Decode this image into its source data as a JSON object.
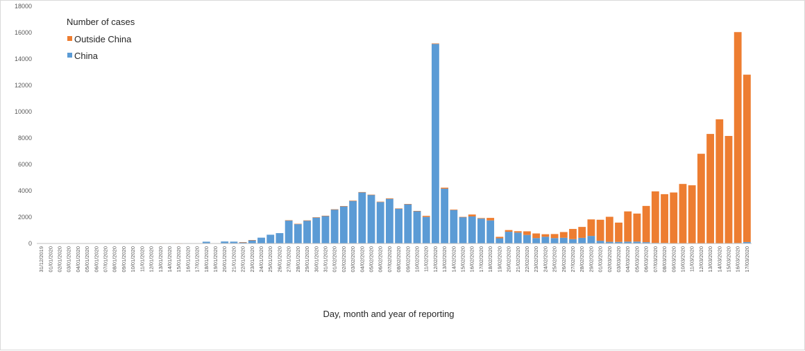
{
  "chart_data": {
    "type": "bar",
    "stacked": true,
    "title": "",
    "xlabel": "Day, month and year of reporting",
    "ylabel": "",
    "ylim": [
      0,
      18000
    ],
    "yticks": [
      0,
      2000,
      4000,
      6000,
      8000,
      10000,
      12000,
      14000,
      16000,
      18000
    ],
    "grid": false,
    "legend": {
      "title": "Number of cases",
      "position": "top-left"
    },
    "colors": {
      "Outside China": "#ED7D31",
      "China": "#5B9BD5"
    },
    "categories": [
      "31/12/2019",
      "01/01/2020",
      "02/01/2020",
      "03/01/2020",
      "04/01/2020",
      "05/01/2020",
      "06/01/2020",
      "07/01/2020",
      "08/01/2020",
      "09/01/2020",
      "10/01/2020",
      "11/01/2020",
      "12/01/2020",
      "13/01/2020",
      "14/01/2020",
      "15/01/2020",
      "16/01/2020",
      "17/01/2020",
      "18/01/2020",
      "19/01/2020",
      "20/01/2020",
      "21/01/2020",
      "22/01/2020",
      "23/01/2020",
      "24/01/2020",
      "25/01/2020",
      "26/01/2020",
      "27/01/2020",
      "28/01/2020",
      "29/01/2020",
      "30/01/2020",
      "31/01/2020",
      "01/02/2020",
      "02/02/2020",
      "03/02/2020",
      "04/02/2020",
      "05/02/2020",
      "06/02/2020",
      "07/02/2020",
      "08/02/2020",
      "09/02/2020",
      "10/02/2020",
      "11/02/2020",
      "12/02/2020",
      "13/02/2020",
      "14/02/2020",
      "15/02/2020",
      "16/02/2020",
      "17/02/2020",
      "18/02/2020",
      "19/02/2020",
      "20/02/2020",
      "21/02/2020",
      "22/02/2020",
      "23/02/2020",
      "24/02/2020",
      "25/02/2020",
      "26/02/2020",
      "27/02/2020",
      "28/02/2020",
      "29/02/2020",
      "01/03/2020",
      "02/03/2020",
      "03/03/2020",
      "04/03/2020",
      "05/03/2020",
      "06/03/2020",
      "07/03/2020",
      "08/03/2020",
      "09/03/2020",
      "10/03/2020",
      "11/03/2020",
      "12/03/2020",
      "13/03/2020",
      "14/03/2020",
      "15/03/2020",
      "16/03/2020",
      "17/03/2020"
    ],
    "category_labels": [
      "31/12/2019",
      "01/01/2020",
      "02/01/2020",
      "03/01/2020",
      "04/01/2020",
      "05/01/2020",
      "06/01/2020",
      "07/01/2020",
      "08/01/2020",
      "09/01/2020",
      "10/01/2020",
      "11/01/2020",
      "12/01/2020",
      "13/01/2020",
      "14/01/2020",
      "15/01/2020",
      "16/01/2020",
      "17/01/2020",
      "18/01/2020",
      "19/01/2020",
      "20/01/2020",
      "21/01/2020",
      "22/01/2020",
      "23/01/2020",
      "24/01/2020",
      "25/01/2020",
      "26/01/2020",
      "27/01/2020",
      "28/01/2020",
      "29/01/2020",
      "30/01/2020",
      "31/01/2020",
      "01/02/2020",
      "02/02/2020",
      "03/02/2020",
      "04/02/2020",
      "05/02/2020",
      "06/02/2020",
      "07/02/2020",
      "08/02/2020",
      "09/02/2020",
      "10/02/2020",
      "11/02/2020",
      "12/02/2020",
      "13/02/2020",
      "14/02/2020",
      "15/02/2020",
      "16/02/2020",
      "17/02/2020",
      "18/02/2020",
      "19/02/2020",
      "20/02/2020",
      "21/02/2020",
      "22/02/2020",
      "23/02/2020",
      "24/02/2020",
      "25/02/2020",
      "26/02/2020",
      "27/02/2020",
      "28/02/2020",
      "29/02/2020",
      "01/03/2020",
      "02/03/2020",
      "03/03/2020",
      "04/03/2020",
      "05/03/2020",
      "06/03/2020",
      "07/03/2020",
      "08/03/2020",
      "09/03/2020",
      "10/03/2020",
      "11/03/2020",
      "12/03/2020",
      "13/03/2020",
      "14/03/2020",
      "15/03/2020",
      "16/03/2020",
      "17/03/2020"
    ],
    "series": [
      {
        "name": "China",
        "values": [
          27,
          0,
          0,
          17,
          0,
          15,
          0,
          0,
          0,
          0,
          0,
          0,
          0,
          0,
          0,
          0,
          4,
          17,
          136,
          19,
          151,
          140,
          97,
          259,
          441,
          665,
          787,
          1753,
          1466,
          1740,
          1980,
          2102,
          2590,
          2829,
          3235,
          3887,
          3694,
          3143,
          3385,
          2652,
          2973,
          2467,
          2015,
          15141,
          4156,
          2538,
          2007,
          2052,
          1890,
          1750,
          394,
          891,
          826,
          648,
          409,
          508,
          406,
          433,
          327,
          427,
          573,
          202,
          125,
          119,
          139,
          143,
          99,
          44,
          40,
          19,
          24,
          15,
          8,
          11,
          21,
          13,
          39,
          109
        ],
        "outside_china": [
          0,
          0,
          0,
          0,
          0,
          0,
          0,
          0,
          0,
          0,
          0,
          0,
          0,
          2,
          0,
          1,
          0,
          2,
          0,
          0,
          0,
          0,
          6,
          3,
          0,
          0,
          0,
          10,
          30,
          12,
          6,
          6,
          1,
          9,
          17,
          14,
          8,
          32,
          44,
          8,
          26,
          7,
          83,
          40,
          79,
          37,
          11,
          147,
          40,
          191,
          112,
          127,
          105,
          275,
          353,
          195,
          311,
          435,
          776,
          830,
          1254,
          1599,
          1901,
          1465,
          2295,
          2127,
          2750,
          3911,
          3702,
          3850,
          4493,
          4401,
          6800,
          8300,
          9400,
          8146,
          16000,
          12700
        ]
      },
      {
        "name": "Outside China",
        "values": [
          0,
          0,
          0,
          0,
          0,
          0,
          0,
          0,
          0,
          0,
          0,
          0,
          0,
          2,
          0,
          1,
          0,
          2,
          0,
          0,
          0,
          0,
          6,
          3,
          0,
          0,
          0,
          10,
          30,
          12,
          6,
          6,
          1,
          9,
          17,
          14,
          8,
          32,
          44,
          8,
          26,
          7,
          83,
          40,
          79,
          37,
          11,
          147,
          40,
          191,
          112,
          127,
          105,
          275,
          353,
          195,
          311,
          435,
          776,
          830,
          1254,
          1599,
          1901,
          1465,
          2295,
          2127,
          2750,
          3911,
          3702,
          3850,
          4493,
          4401,
          6800,
          8300,
          9400,
          8146,
          16000,
          12700
        ]
      }
    ]
  }
}
